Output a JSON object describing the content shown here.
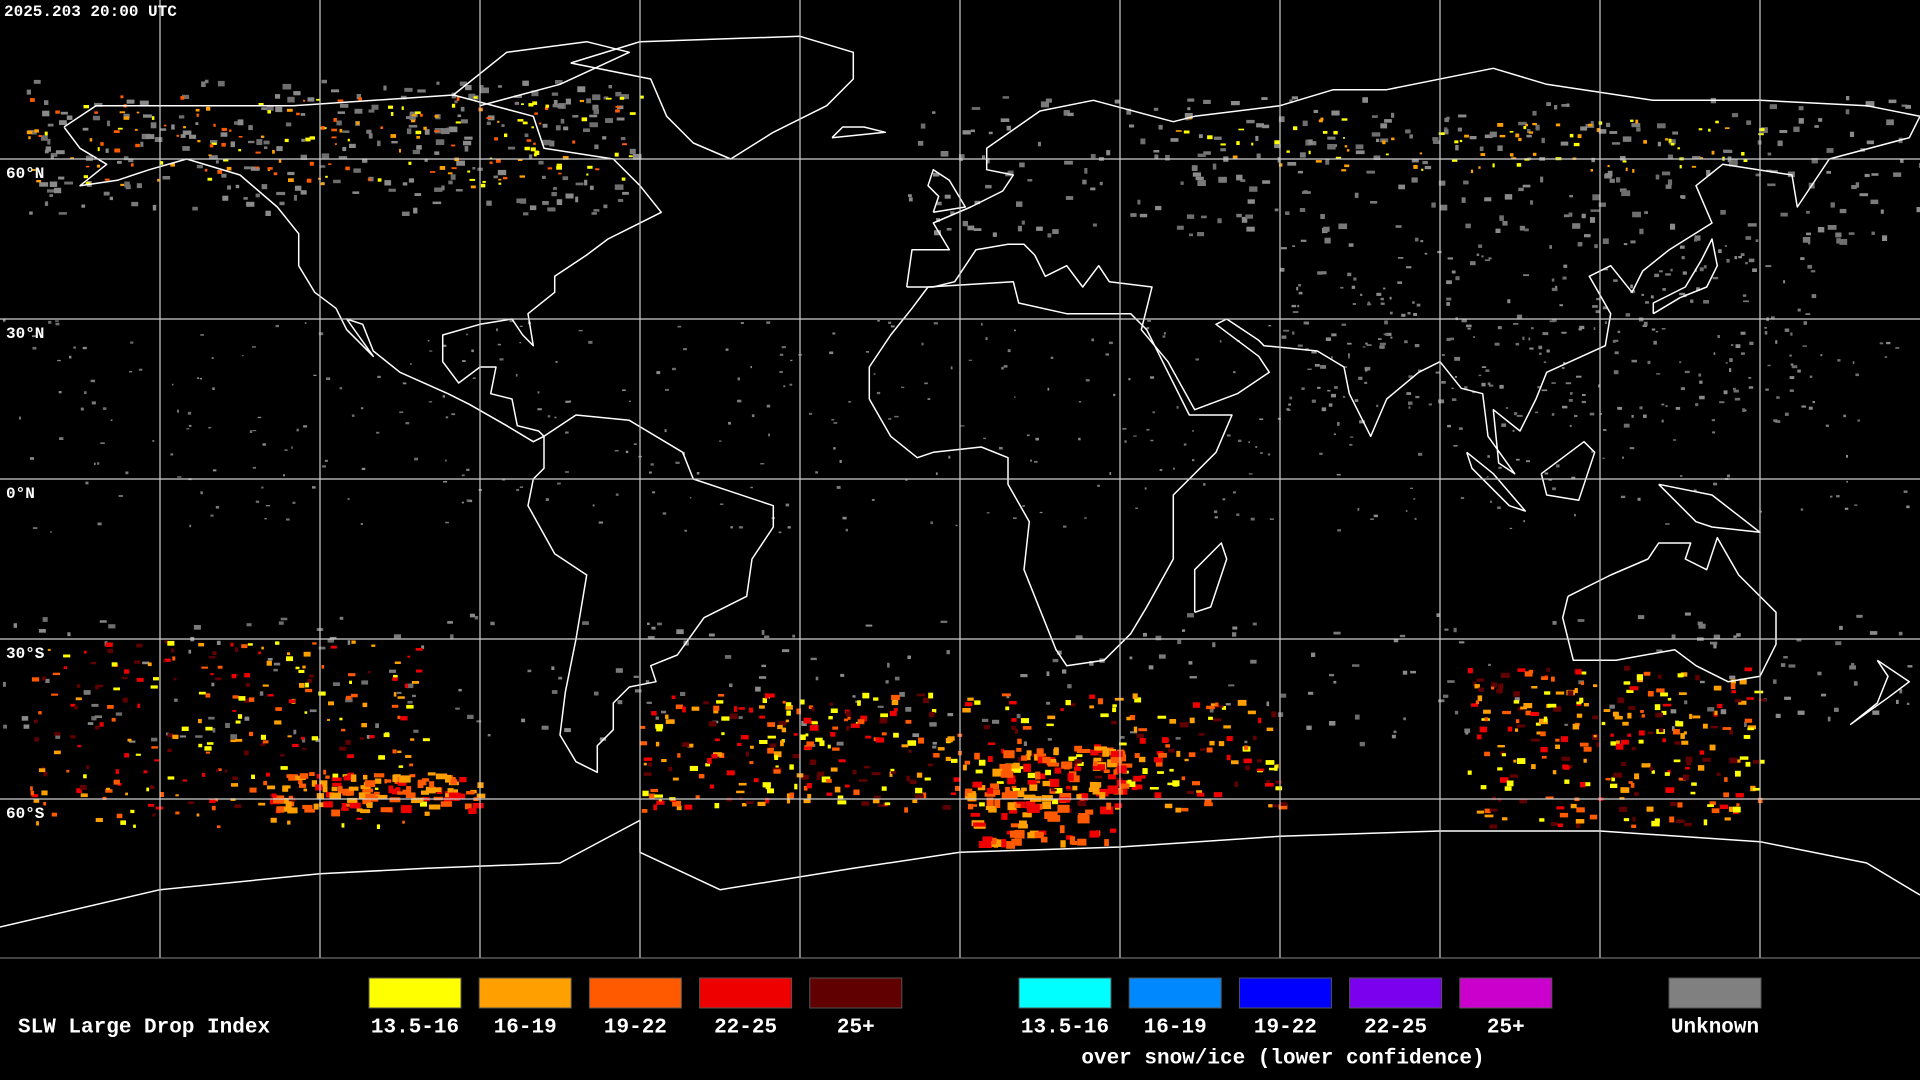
{
  "header": {
    "timestamp": "2025.203 20:00 UTC"
  },
  "lat_labels": [
    "60°N",
    "30°N",
    "0°N",
    "30°S",
    "60°S"
  ],
  "legend": {
    "title": "SLW Large Drop Index",
    "groups": [
      {
        "items": [
          {
            "label": "13.5-16",
            "color": "#ffff00"
          },
          {
            "label": "16-19",
            "color": "#ffa000"
          },
          {
            "label": "19-22",
            "color": "#ff5a00"
          },
          {
            "label": "22-25",
            "color": "#ee0000"
          },
          {
            "label": "25+",
            "color": "#600000"
          }
        ]
      },
      {
        "items": [
          {
            "label": "13.5-16",
            "color": "#00ffff"
          },
          {
            "label": "16-19",
            "color": "#0088ff"
          },
          {
            "label": "19-22",
            "color": "#0000ff"
          },
          {
            "label": "22-25",
            "color": "#7a00ee"
          },
          {
            "label": "25+",
            "color": "#cc00cc"
          }
        ]
      }
    ],
    "snow_note": "over snow/ice (lower confidence)",
    "unknown": {
      "label": "Unknown",
      "color": "#808080"
    }
  }
}
